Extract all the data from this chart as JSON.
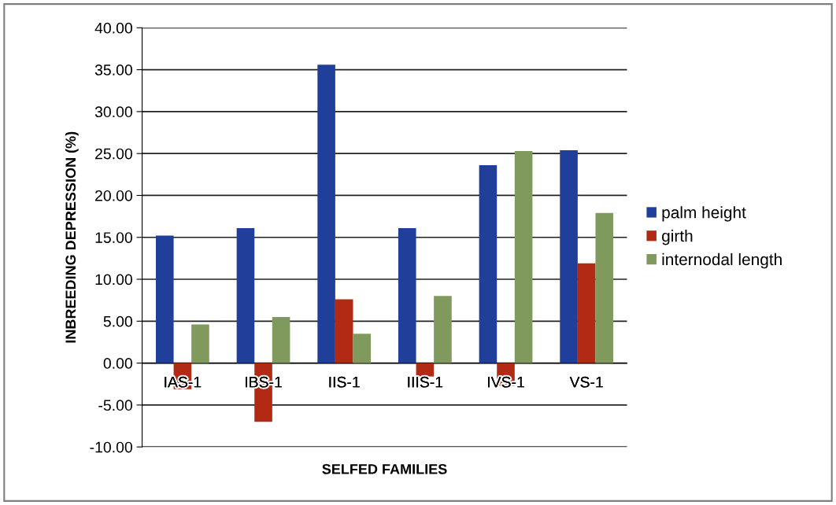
{
  "chart_data": {
    "type": "bar",
    "xlabel": "SELFED FAMILIES",
    "ylabel": "INBREEDING DEPRESSION (%)",
    "categories": [
      "IAS-1",
      "IBS-1",
      "IIS-1",
      "IIIS-1",
      "IVS-1",
      "VS-1"
    ],
    "series": [
      {
        "name": "palm height",
        "color": "#1f3f9a",
        "values": [
          15.2,
          16.1,
          35.6,
          16.1,
          23.6,
          25.4
        ]
      },
      {
        "name": "girth",
        "color": "#b22a14",
        "values": [
          -3.1,
          -7.0,
          7.6,
          -1.6,
          -2.7,
          11.9
        ]
      },
      {
        "name": "internodal length",
        "color": "#7f9a5c",
        "values": [
          4.6,
          5.5,
          3.5,
          8.0,
          25.3,
          17.9
        ]
      }
    ],
    "ylim": [
      -10,
      40
    ],
    "yticks": [
      {
        "value": -10,
        "label": "-10.00"
      },
      {
        "value": -5,
        "label": "-5.00"
      },
      {
        "value": 0,
        "label": "0.00"
      },
      {
        "value": 5,
        "label": "5.00"
      },
      {
        "value": 10,
        "label": "10.00"
      },
      {
        "value": 15,
        "label": "15.00"
      },
      {
        "value": 20,
        "label": "20.00"
      },
      {
        "value": 25,
        "label": "25.00"
      },
      {
        "value": 30,
        "label": "30.00"
      },
      {
        "value": 35,
        "label": "35.00"
      },
      {
        "value": 40,
        "label": "40.00"
      }
    ],
    "grid": "y",
    "legend": "right"
  }
}
